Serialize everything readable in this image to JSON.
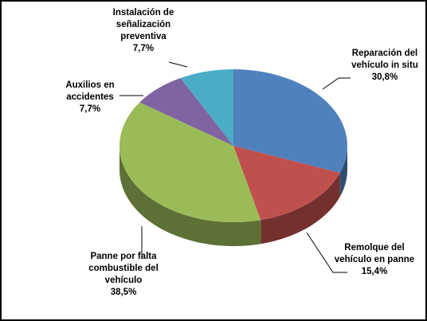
{
  "chart_data": {
    "type": "pie",
    "categories": [
      "Reparación del vehículo in situ",
      "Remolque del vehículo en panne",
      "Panne por falta combustible del vehículo",
      "Auxilios en accidentes",
      "Instalación de señalización preventiva"
    ],
    "values": [
      30.8,
      15.4,
      38.5,
      7.7,
      7.7
    ],
    "value_labels": [
      "30,8%",
      "15,4%",
      "38,5%",
      "7,7%",
      "7,7%"
    ],
    "colors": [
      "#4f81bd",
      "#c0504d",
      "#9bbb59",
      "#8064a2",
      "#4bacc6"
    ]
  }
}
